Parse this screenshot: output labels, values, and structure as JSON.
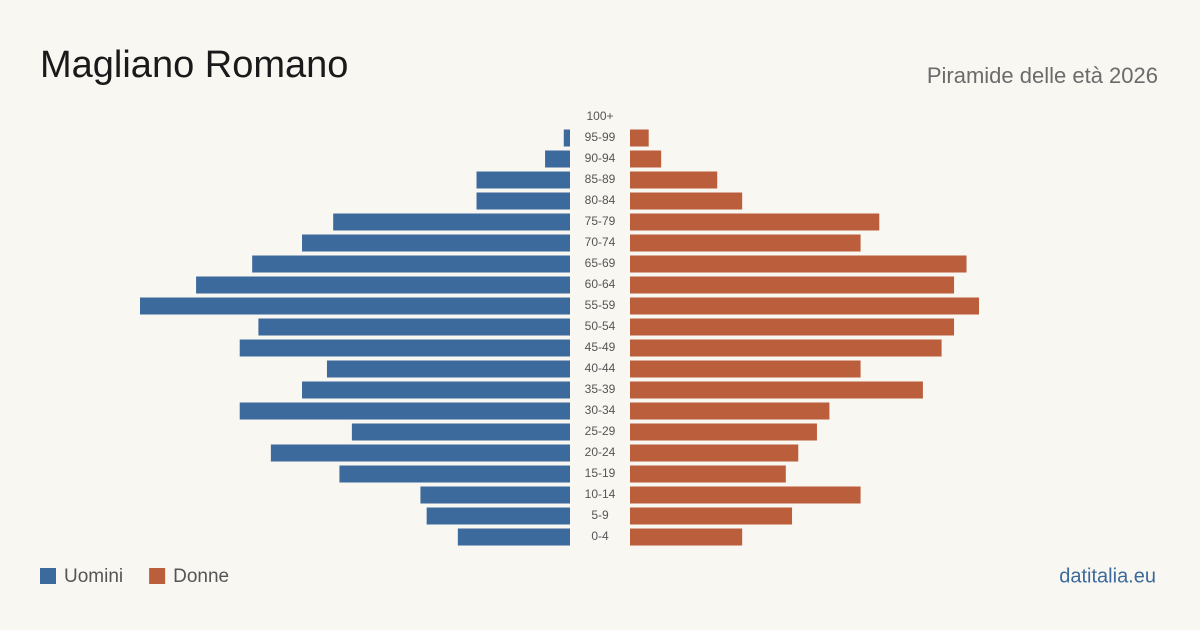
{
  "chart_data": {
    "type": "pyramid",
    "title": "Magliano Romano",
    "subtitle": "Piramide delle età 2026",
    "source": "datitalia.eu",
    "categories": [
      "100+",
      "95-99",
      "90-94",
      "85-89",
      "80-84",
      "75-79",
      "70-74",
      "65-69",
      "60-64",
      "55-59",
      "50-54",
      "45-49",
      "40-44",
      "35-39",
      "30-34",
      "25-29",
      "20-24",
      "15-19",
      "10-14",
      "5-9",
      "0-4"
    ],
    "series": [
      {
        "name": "Uomini",
        "color": "#3d6a9c",
        "values": [
          0,
          1,
          4,
          15,
          15,
          38,
          43,
          51,
          60,
          69,
          50,
          53,
          39,
          43,
          53,
          35,
          48,
          37,
          24,
          23,
          18
        ]
      },
      {
        "name": "Donne",
        "color": "#bb5e3c",
        "values": [
          0,
          3,
          5,
          14,
          18,
          40,
          37,
          54,
          52,
          56,
          52,
          50,
          37,
          47,
          32,
          30,
          27,
          25,
          37,
          26,
          18
        ]
      }
    ]
  }
}
